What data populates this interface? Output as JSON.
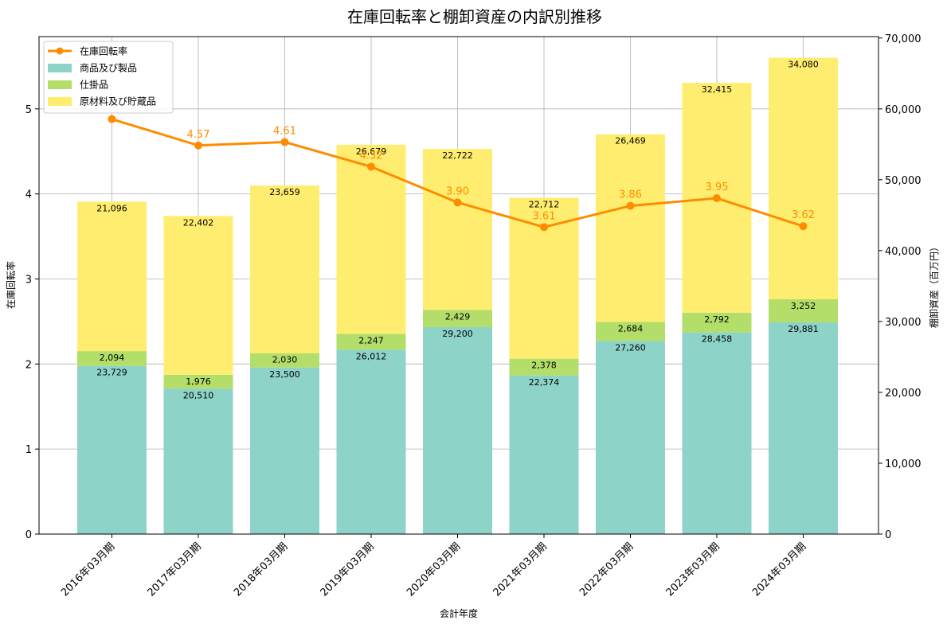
{
  "chart_data": {
    "type": "bar",
    "title": "在庫回転率と棚卸資産の内訳別推移",
    "xlabel": "会計年度",
    "ylabel_left": "在庫回転率",
    "ylabel_right": "棚卸資産（百万円）",
    "categories": [
      "2016年03月期",
      "2017年03月期",
      "2018年03月期",
      "2019年03月期",
      "2020年03月期",
      "2021年03月期",
      "2022年03月期",
      "2023年03月期",
      "2024年03月期"
    ],
    "series": [
      {
        "name": "商品及び製品",
        "kind": "stacked-bar",
        "axis": "right",
        "color": "#8dd3c7",
        "values": [
          23729,
          20510,
          23500,
          26012,
          29200,
          22374,
          27260,
          28458,
          29881
        ],
        "labels": [
          "23,729",
          "20,510",
          "23,500",
          "26,012",
          "29,200",
          "22,374",
          "27,260",
          "28,458",
          "29,881"
        ]
      },
      {
        "name": "仕掛品",
        "kind": "stacked-bar",
        "axis": "right",
        "color": "#b3de69",
        "values": [
          2094,
          1976,
          2030,
          2247,
          2429,
          2378,
          2684,
          2792,
          3252
        ],
        "labels": [
          "2,094",
          "1,976",
          "2,030",
          "2,247",
          "2,429",
          "2,378",
          "2,684",
          "2,792",
          "3,252"
        ]
      },
      {
        "name": "原材料及び貯蔵品",
        "kind": "stacked-bar",
        "axis": "right",
        "color": "#ffed6f",
        "values": [
          21096,
          22402,
          23659,
          26679,
          22722,
          22712,
          26469,
          32415,
          34080
        ],
        "labels": [
          "21,096",
          "22,402",
          "23,659",
          "26,679",
          "22,722",
          "22,712",
          "26,469",
          "32,415",
          "34,080"
        ]
      },
      {
        "name": "在庫回転率",
        "kind": "line",
        "axis": "left",
        "color": "#ff8c00",
        "values": [
          4.88,
          4.57,
          4.61,
          4.32,
          3.9,
          3.61,
          3.86,
          3.95,
          3.62
        ],
        "labels": [
          "",
          "4.57",
          "4.61",
          "4.32",
          "3.90",
          "3.61",
          "3.86",
          "3.95",
          "3.62"
        ]
      }
    ],
    "y_left": {
      "min": 0,
      "max": 5.85,
      "ticks": [
        "0",
        "1",
        "2",
        "3",
        "4",
        "5"
      ]
    },
    "y_right": {
      "min": 0,
      "max": 70200,
      "ticks": [
        "0",
        "10,000",
        "20,000",
        "30,000",
        "40,000",
        "50,000",
        "60,000",
        "70,000"
      ]
    },
    "grid": true,
    "legend_position": "top-left"
  }
}
